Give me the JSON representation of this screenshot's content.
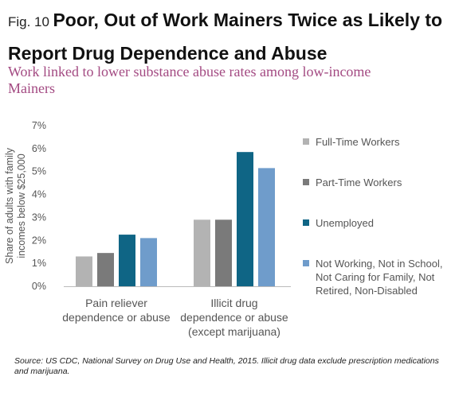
{
  "header": {
    "fig_label": "Fig. 10",
    "title": "Poor, Out of Work Mainers Twice as Likely to Report Drug Dependence and Abuse",
    "subtitle": "Work linked to lower substance abuse rates among low-income Mainers"
  },
  "source": "Source: US CDC, National Survey on Drug Use and Health, 2015. Illicit drug data exclude prescription medications and marijuana.",
  "chart_data": {
    "type": "bar",
    "ylabel": "Share of  adults with family incomes below $25,000",
    "ylim": [
      0,
      7
    ],
    "yticks": [
      "0%",
      "1%",
      "2%",
      "3%",
      "4%",
      "5%",
      "6%",
      "7%"
    ],
    "grid": false,
    "legend_position": "right",
    "categories": [
      [
        "Pain reliever",
        "dependence or abuse"
      ],
      [
        "Illicit drug",
        "dependence or abuse",
        "(except marijuana)"
      ]
    ],
    "series": [
      {
        "name": "Full-Time Workers",
        "color": "#b3b3b3",
        "values": [
          1.3,
          2.9
        ]
      },
      {
        "name": "Part-Time Workers",
        "color": "#7a7a7a",
        "values": [
          1.45,
          2.9
        ]
      },
      {
        "name": "Unemployed",
        "color": "#0f6585",
        "values": [
          2.25,
          5.85
        ]
      },
      {
        "name": "Not Working, Not in School, Not Caring for Family, Not Retired, Non-Disabled",
        "color": "#6f9ccb",
        "values": [
          2.1,
          5.15
        ]
      }
    ]
  }
}
